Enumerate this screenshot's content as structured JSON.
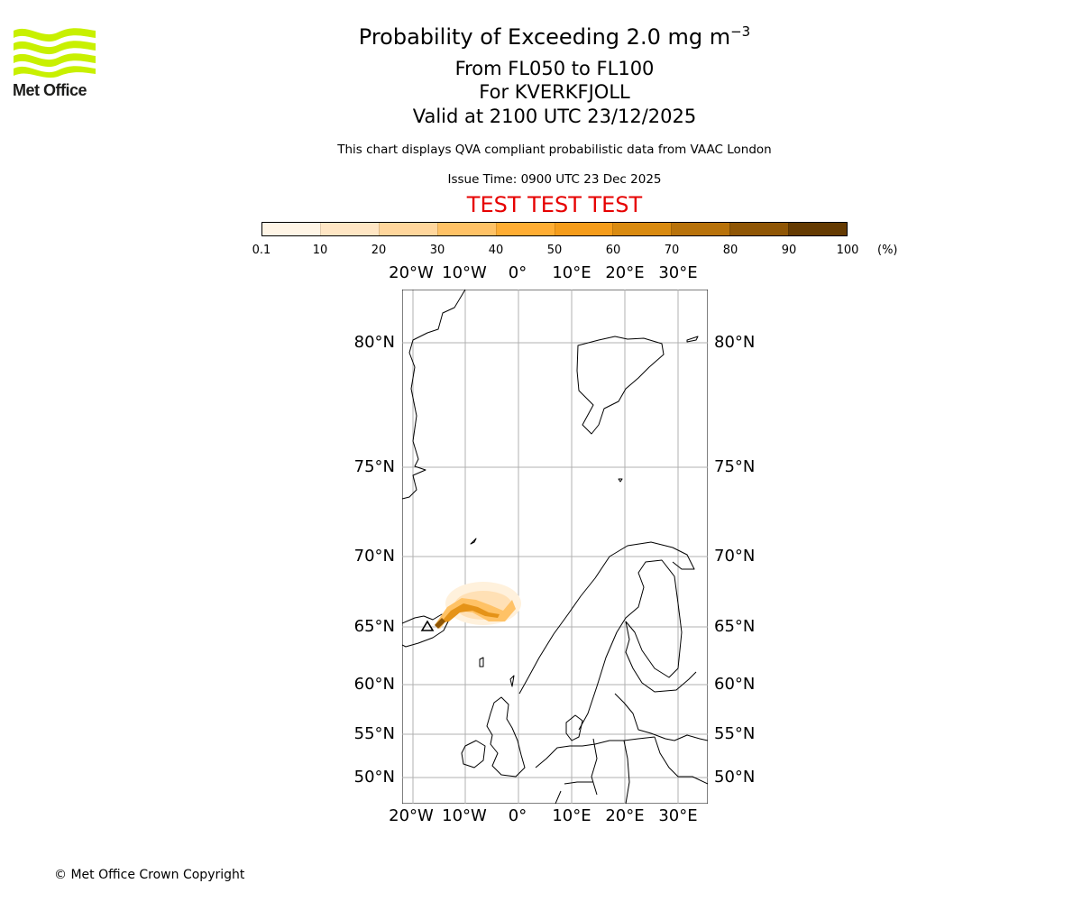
{
  "logo": {
    "name": "Met Office"
  },
  "header": {
    "title_main": "Probability of Exceeding 2.0 mg m",
    "title_exp": "−3",
    "level_range": "From FL050 to FL100",
    "location": "For KVERKFJOLL",
    "valid": "Valid at 2100 UTC 23/12/2025",
    "description": "This chart displays QVA compliant probabilistic data from VAAC London",
    "issue_time": "Issue Time: 0900 UTC 23 Dec 2025",
    "test_banner": "TEST TEST TEST"
  },
  "colorbar": {
    "ticks": [
      "0.1",
      "10",
      "20",
      "30",
      "40",
      "50",
      "60",
      "70",
      "80",
      "90",
      "100"
    ],
    "unit": "(%)",
    "colors": [
      "#fff5e6",
      "#ffe6c4",
      "#ffd69c",
      "#ffc266",
      "#ffad33",
      "#f59c1a",
      "#d98a10",
      "#b8720a",
      "#8f5605",
      "#653b02"
    ]
  },
  "map": {
    "lon_labels": [
      "20°W",
      "10°W",
      "0°",
      "10°E",
      "20°E",
      "30°E"
    ],
    "lat_labels": [
      "80°N",
      "75°N",
      "70°N",
      "65°N",
      "60°N",
      "55°N",
      "50°N"
    ]
  },
  "footer": {
    "copyright": "© Met Office Crown Copyright"
  }
}
